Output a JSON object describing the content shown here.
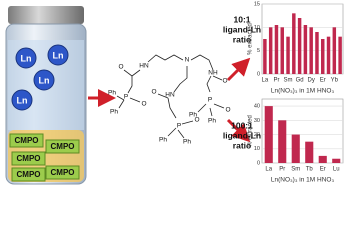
{
  "vial": {
    "ions": [
      "Ln",
      "Ln",
      "Ln",
      "Ln"
    ],
    "ligands": [
      "CMPO",
      "CMPO",
      "CMPO",
      "CMPO",
      "CMPO"
    ]
  },
  "structure": {
    "atoms": [
      "N",
      "HN",
      "O",
      "P",
      "O",
      "Ph",
      "Ph",
      "NH",
      "O",
      "P",
      "O",
      "Ph",
      "Ph",
      "HN",
      "O",
      "P",
      "O",
      "Ph",
      "Ph"
    ]
  },
  "ratios": [
    [
      "10:1",
      "ligand-Ln",
      "ratio"
    ],
    [
      "100:1",
      "ligand-Ln",
      "ratio"
    ]
  ],
  "chart_data": [
    {
      "type": "bar",
      "ylabel": "% extracted",
      "xlabel": "Ln(NO₃)₃ in 1M HNO₃",
      "categories": [
        "La",
        null,
        "Pr",
        null,
        "Sm",
        null,
        "Gd",
        null,
        "Dy",
        null,
        "Er",
        null,
        "Yb",
        null
      ],
      "values": [
        7.5,
        10,
        10.5,
        10,
        8,
        13,
        12,
        10.5,
        10,
        9,
        7.5,
        8,
        10,
        8
      ],
      "color": "#c0284e",
      "ylim": [
        0,
        15
      ],
      "yticks": [
        0,
        5,
        10,
        15
      ],
      "grid": true
    },
    {
      "type": "bar",
      "ylabel": "% extracted",
      "xlabel": "Ln(NO₃)₃ in 1M HNO₃",
      "categories": [
        "La",
        "Pr",
        "Sm",
        "Tb",
        "Er",
        "Lu"
      ],
      "values": [
        40,
        30,
        20,
        15,
        5,
        3
      ],
      "color": "#c0284e",
      "ylim": [
        0,
        45
      ],
      "yticks": [
        0,
        10,
        20,
        30,
        40
      ],
      "grid": true
    }
  ]
}
